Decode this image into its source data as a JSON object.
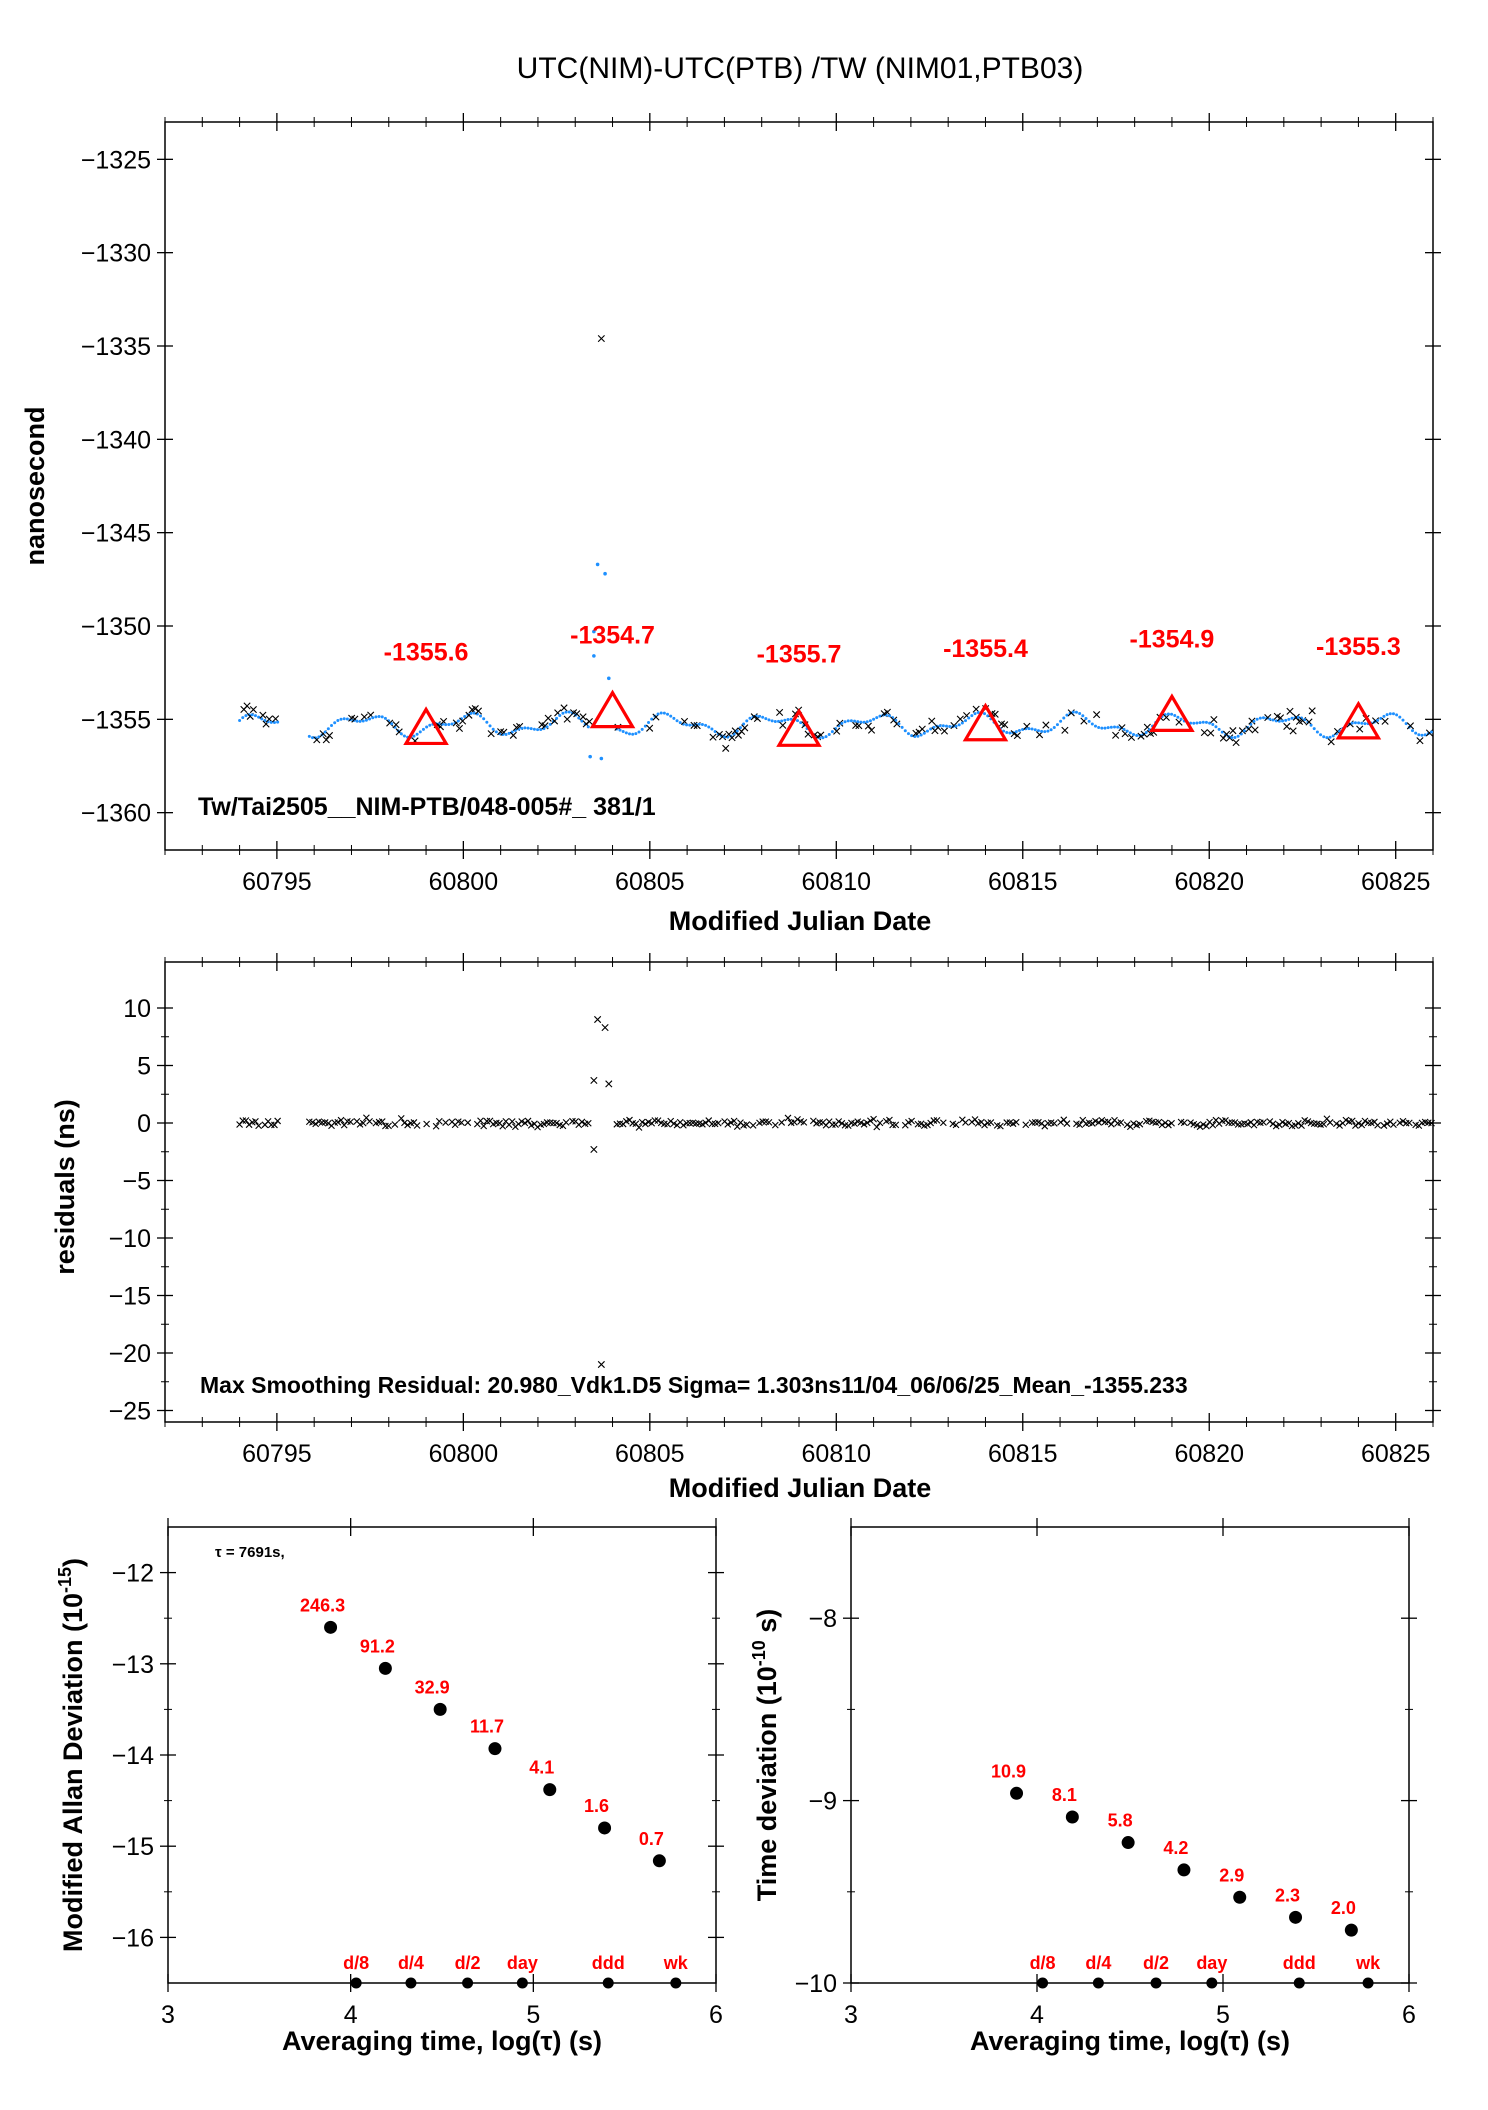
{
  "title": "UTC(NIM)-UTC(PTB)  /TW  (NIM01,PTB03)",
  "colors": {
    "red": "#ff0000",
    "blue": "#1e90ff",
    "black": "#000000"
  },
  "chart_data": [
    {
      "id": "main",
      "type": "scatter",
      "xlabel": "Modified Julian Date",
      "ylabel": "nanosecond",
      "xlim": [
        60792,
        60826
      ],
      "ylim": [
        -1362,
        -1323
      ],
      "xticks": [
        60795,
        60800,
        60805,
        60810,
        60815,
        60820,
        60825
      ],
      "yticks": [
        -1325,
        -1330,
        -1335,
        -1340,
        -1345,
        -1350,
        -1355,
        -1360
      ],
      "yticklabels": [
        "−1325",
        "−1330",
        "−1335",
        "−1340",
        "−1345",
        "−1350",
        "−1355",
        "−1360"
      ],
      "annotation": "Tw/Tai2505__NIM-PTB/048-005#_  381/1",
      "means": [
        {
          "x": 60799,
          "y": -1355.6,
          "label": "-1355.6"
        },
        {
          "x": 60804,
          "y": -1354.7,
          "label": "-1354.7"
        },
        {
          "x": 60809,
          "y": -1355.7,
          "label": "-1355.7"
        },
        {
          "x": 60814,
          "y": -1355.4,
          "label": "-1355.4"
        },
        {
          "x": 60819,
          "y": -1354.9,
          "label": "-1354.9"
        },
        {
          "x": 60824,
          "y": -1355.3,
          "label": "-1355.3"
        }
      ],
      "base_level": -1355.3,
      "gaps": [
        [
          60795.1,
          60795.8
        ]
      ],
      "outliers": [
        {
          "x": 60803.7,
          "y": -1334.6
        },
        {
          "x": 60803.6,
          "y": -1346.7
        },
        {
          "x": 60803.8,
          "y": -1347.2
        },
        {
          "x": 60803.5,
          "y": -1350.3
        },
        {
          "x": 60803.5,
          "y": -1351.6
        },
        {
          "x": 60803.9,
          "y": -1352.8
        },
        {
          "x": 60803.4,
          "y": -1357.0
        },
        {
          "x": 60803.7,
          "y": -1357.1
        }
      ]
    },
    {
      "id": "residuals",
      "type": "scatter",
      "xlabel": "Modified Julian Date",
      "ylabel": "residuals (ns)",
      "xlim": [
        60792,
        60826
      ],
      "ylim": [
        -26,
        14
      ],
      "xticks": [
        60795,
        60800,
        60805,
        60810,
        60815,
        60820,
        60825
      ],
      "yticks": [
        10,
        5,
        0,
        -5,
        -10,
        -15,
        -20,
        -25
      ],
      "yticklabels": [
        "10",
        "5",
        "0",
        "−5",
        "−10",
        "−15",
        "−20",
        "−25"
      ],
      "annotation": "Max Smoothing Residual: 20.980_Vdk1.D5  Sigma= 1.303ns11/04_06/06/25_Mean_-1355.233",
      "outliers": [
        {
          "x": 60803.6,
          "y": 9.0
        },
        {
          "x": 60803.8,
          "y": 8.3
        },
        {
          "x": 60803.5,
          "y": 3.7
        },
        {
          "x": 60803.9,
          "y": 3.4
        },
        {
          "x": 60803.5,
          "y": -2.3
        },
        {
          "x": 60803.7,
          "y": -21.0
        }
      ]
    },
    {
      "id": "mdev",
      "type": "scatter",
      "xlabel": "Averaging time, log(τ) (s)",
      "ylabel_main": "Modified Allan Deviation (10",
      "ylabel_sup": "-15",
      "ylabel_end": ")",
      "xlim": [
        3,
        6
      ],
      "ylim": [
        -16.5,
        -11.5
      ],
      "xticks": [
        3,
        4,
        5,
        6
      ],
      "yticks": [
        -12,
        -13,
        -14,
        -15,
        -16
      ],
      "yticklabels": [
        "−12",
        "−13",
        "−14",
        "−15",
        "−16"
      ],
      "note": "τ = 7691s,",
      "points": [
        {
          "x": 3.89,
          "y": -12.6,
          "label": "246.3"
        },
        {
          "x": 4.19,
          "y": -13.05,
          "label": "91.2"
        },
        {
          "x": 4.49,
          "y": -13.5,
          "label": "32.9"
        },
        {
          "x": 4.79,
          "y": -13.93,
          "label": "11.7"
        },
        {
          "x": 5.09,
          "y": -14.38,
          "label": "4.1"
        },
        {
          "x": 5.39,
          "y": -14.8,
          "label": "1.6"
        },
        {
          "x": 5.69,
          "y": -15.16,
          "label": "0.7"
        }
      ],
      "markers": [
        {
          "x": 4.03,
          "label": "d/8"
        },
        {
          "x": 4.33,
          "label": "d/4"
        },
        {
          "x": 4.64,
          "label": "d/2"
        },
        {
          "x": 4.94,
          "label": "day"
        },
        {
          "x": 5.41,
          "label": "ddd"
        },
        {
          "x": 5.78,
          "label": "wk"
        }
      ]
    },
    {
      "id": "tdev",
      "type": "scatter",
      "xlabel": "Averaging time, log(τ) (s)",
      "ylabel_main": "Time deviation (10",
      "ylabel_sup": "-10",
      "ylabel_end": " s)",
      "xlim": [
        3,
        6
      ],
      "ylim": [
        -10,
        -7.5
      ],
      "xticks": [
        3,
        4,
        5,
        6
      ],
      "yticks": [
        -8,
        -9,
        -10
      ],
      "yticklabels": [
        "−8",
        "−9",
        "−10"
      ],
      "points": [
        {
          "x": 3.89,
          "y": -8.96,
          "label": "10.9"
        },
        {
          "x": 4.19,
          "y": -9.09,
          "label": "8.1"
        },
        {
          "x": 4.49,
          "y": -9.23,
          "label": "5.8"
        },
        {
          "x": 4.79,
          "y": -9.38,
          "label": "4.2"
        },
        {
          "x": 5.09,
          "y": -9.53,
          "label": "2.9"
        },
        {
          "x": 5.39,
          "y": -9.64,
          "label": "2.3"
        },
        {
          "x": 5.69,
          "y": -9.71,
          "label": "2.0"
        }
      ],
      "markers": [
        {
          "x": 4.03,
          "label": "d/8"
        },
        {
          "x": 4.33,
          "label": "d/4"
        },
        {
          "x": 4.64,
          "label": "d/2"
        },
        {
          "x": 4.94,
          "label": "day"
        },
        {
          "x": 5.41,
          "label": "ddd"
        },
        {
          "x": 5.78,
          "label": "wk"
        }
      ]
    }
  ]
}
